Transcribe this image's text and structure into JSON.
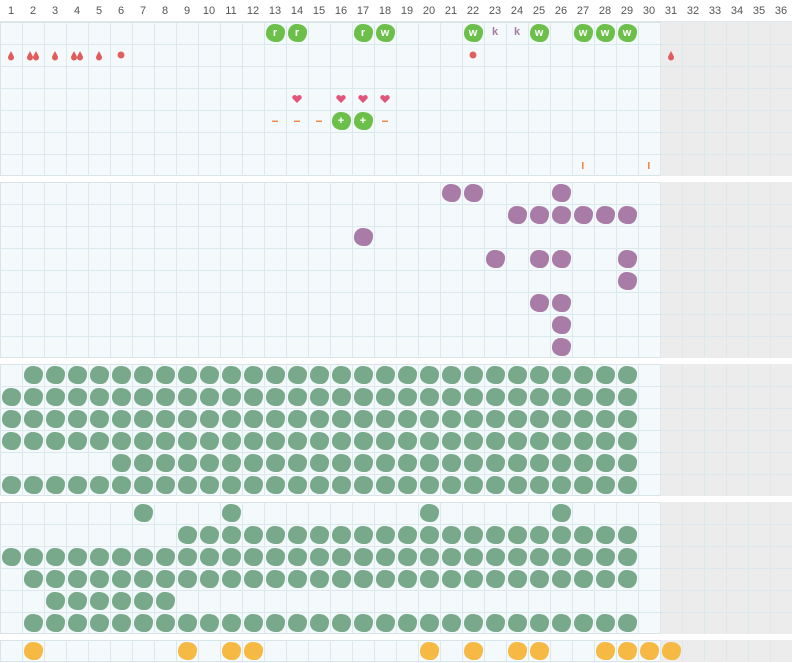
{
  "header": {
    "days": [
      1,
      2,
      3,
      4,
      5,
      6,
      7,
      8,
      9,
      10,
      11,
      12,
      13,
      14,
      15,
      16,
      17,
      18,
      19,
      20,
      21,
      22,
      23,
      24,
      25,
      26,
      27,
      28,
      29,
      30,
      31,
      32,
      33,
      34,
      35,
      36
    ],
    "shaded_from": 31
  },
  "sections": [
    {
      "rows": [
        [
          {
            "day": 13,
            "icon": "blob",
            "text": "r"
          },
          {
            "day": 14,
            "icon": "blob",
            "text": "r"
          },
          {
            "day": 17,
            "icon": "blob",
            "text": "r"
          },
          {
            "day": 18,
            "icon": "blob",
            "text": "w"
          },
          {
            "day": 22,
            "icon": "blob",
            "text": "w"
          },
          {
            "day": 23,
            "text": "k"
          },
          {
            "day": 24,
            "text": "k"
          },
          {
            "day": 25,
            "icon": "blob",
            "text": "w"
          },
          {
            "day": 27,
            "icon": "blob",
            "text": "w"
          },
          {
            "day": 28,
            "icon": "blob",
            "text": "w"
          },
          {
            "day": 29,
            "icon": "blob",
            "text": "w"
          }
        ],
        [
          {
            "day": 1,
            "icon": "drop"
          },
          {
            "day": 2,
            "icon": "drops"
          },
          {
            "day": 3,
            "icon": "drop"
          },
          {
            "day": 4,
            "icon": "drops"
          },
          {
            "day": 5,
            "icon": "drop"
          },
          {
            "day": 6,
            "icon": "dot"
          },
          {
            "day": 22,
            "icon": "dot"
          },
          {
            "day": 31,
            "icon": "drop"
          }
        ],
        [],
        [
          {
            "day": 14,
            "icon": "heart"
          },
          {
            "day": 16,
            "icon": "heart"
          },
          {
            "day": 17,
            "icon": "heart"
          },
          {
            "day": 18,
            "icon": "heart"
          }
        ],
        [
          {
            "day": 13,
            "icon": "dash"
          },
          {
            "day": 14,
            "icon": "dash"
          },
          {
            "day": 15,
            "icon": "dash"
          },
          {
            "day": 16,
            "icon": "blob",
            "text": "+"
          },
          {
            "day": 17,
            "icon": "blob",
            "text": "+"
          },
          {
            "day": 18,
            "icon": "dash"
          }
        ],
        [],
        [
          {
            "day": 27,
            "icon": "bar"
          },
          {
            "day": 30,
            "icon": "bar"
          }
        ]
      ]
    },
    {
      "color": "#a87ca6",
      "rows": [
        [
          21,
          22,
          26
        ],
        [
          24,
          25,
          26,
          27,
          28,
          29
        ],
        [
          17
        ],
        [
          23,
          25,
          26,
          29
        ],
        [
          29
        ],
        [
          25,
          26
        ],
        [
          26
        ],
        [
          26
        ]
      ]
    },
    {
      "color": "#79a98b",
      "rows": [
        [
          2,
          3,
          4,
          5,
          6,
          7,
          8,
          9,
          10,
          11,
          12,
          13,
          14,
          15,
          16,
          17,
          18,
          19,
          20,
          21,
          22,
          23,
          24,
          25,
          26,
          27,
          28,
          29
        ],
        [
          1,
          2,
          3,
          4,
          5,
          6,
          7,
          8,
          9,
          10,
          11,
          12,
          13,
          14,
          15,
          16,
          17,
          18,
          19,
          20,
          21,
          22,
          23,
          24,
          25,
          26,
          27,
          28,
          29
        ],
        [
          1,
          2,
          3,
          4,
          5,
          6,
          7,
          8,
          9,
          10,
          11,
          12,
          13,
          14,
          15,
          16,
          17,
          18,
          19,
          20,
          21,
          22,
          23,
          24,
          25,
          26,
          27,
          28,
          29
        ],
        [
          1,
          2,
          3,
          4,
          5,
          6,
          7,
          8,
          9,
          10,
          11,
          12,
          13,
          14,
          15,
          16,
          17,
          18,
          19,
          20,
          21,
          22,
          23,
          24,
          25,
          26,
          27,
          28,
          29
        ],
        [
          6,
          7,
          8,
          9,
          10,
          11,
          12,
          13,
          14,
          15,
          16,
          17,
          18,
          19,
          20,
          21,
          22,
          23,
          24,
          25,
          26,
          27,
          28,
          29
        ],
        [
          1,
          2,
          3,
          4,
          5,
          6,
          7,
          8,
          9,
          10,
          11,
          12,
          13,
          14,
          15,
          16,
          17,
          18,
          19,
          20,
          21,
          22,
          23,
          24,
          25,
          26,
          27,
          28,
          29
        ]
      ]
    },
    {
      "color": "#79a98b",
      "rows": [
        [
          7,
          11,
          20,
          26
        ],
        [
          9,
          10,
          11,
          12,
          13,
          14,
          15,
          16,
          17,
          18,
          19,
          20,
          21,
          22,
          23,
          24,
          25,
          26,
          27,
          28,
          29
        ],
        [
          1,
          2,
          3,
          4,
          5,
          6,
          7,
          8,
          9,
          10,
          11,
          12,
          13,
          14,
          15,
          16,
          17,
          18,
          19,
          20,
          21,
          22,
          23,
          24,
          25,
          26,
          27,
          28,
          29
        ],
        [
          2,
          3,
          4,
          5,
          6,
          7,
          8,
          9,
          10,
          11,
          12,
          13,
          14,
          15,
          16,
          17,
          18,
          19,
          20,
          21,
          22,
          23,
          24,
          25,
          26,
          27,
          28,
          29
        ],
        [
          3,
          4,
          5,
          6,
          7,
          8
        ],
        [
          2,
          3,
          4,
          5,
          6,
          7,
          8,
          9,
          10,
          11,
          12,
          13,
          14,
          15,
          16,
          17,
          18,
          19,
          20,
          21,
          22,
          23,
          24,
          25,
          26,
          27,
          28,
          29
        ]
      ]
    },
    {
      "color": "#f6b944",
      "rows": [
        [
          2,
          9,
          11,
          12,
          20,
          22,
          24,
          25,
          28,
          29,
          30,
          31
        ]
      ]
    }
  ]
}
